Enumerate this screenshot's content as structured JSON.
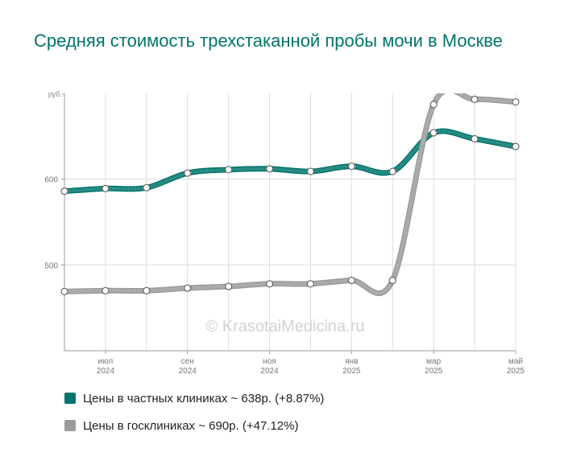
{
  "title": "Средняя стоимость трехстаканной пробы мочи в Москве",
  "chart_data": {
    "type": "line",
    "unit_label": "руб.",
    "ylim": [
      400,
      700
    ],
    "y_ticks": [
      500,
      600
    ],
    "x": [
      0,
      1,
      2,
      3,
      4,
      5,
      6,
      7,
      8,
      9,
      10,
      11
    ],
    "x_tick_labels": [
      {
        "pos": 1,
        "month": "июл",
        "year": "2024"
      },
      {
        "pos": 3,
        "month": "сен",
        "year": "2024"
      },
      {
        "pos": 5,
        "month": "ноя",
        "year": "2024"
      },
      {
        "pos": 7,
        "month": "янв",
        "year": "2025"
      },
      {
        "pos": 9,
        "month": "мар",
        "year": "2025"
      },
      {
        "pos": 11,
        "month": "май",
        "year": "2025"
      }
    ],
    "grid": true,
    "legend_position": "bottom-left",
    "series": [
      {
        "name": "Цены в частных клиниках ~ 638р. (+8.87%)",
        "color": "#00756b",
        "values": [
          586,
          589,
          590,
          607,
          611,
          612,
          609,
          615,
          609,
          654,
          647,
          638
        ]
      },
      {
        "name": "Цены в госклиниках ~ 690р. (+47.12%)",
        "color": "#9b9b9b",
        "values": [
          469,
          470,
          470,
          473,
          475,
          478,
          478,
          482,
          482,
          687,
          693,
          690
        ]
      }
    ]
  },
  "watermark": "© KrasotaiMedicina.ru"
}
